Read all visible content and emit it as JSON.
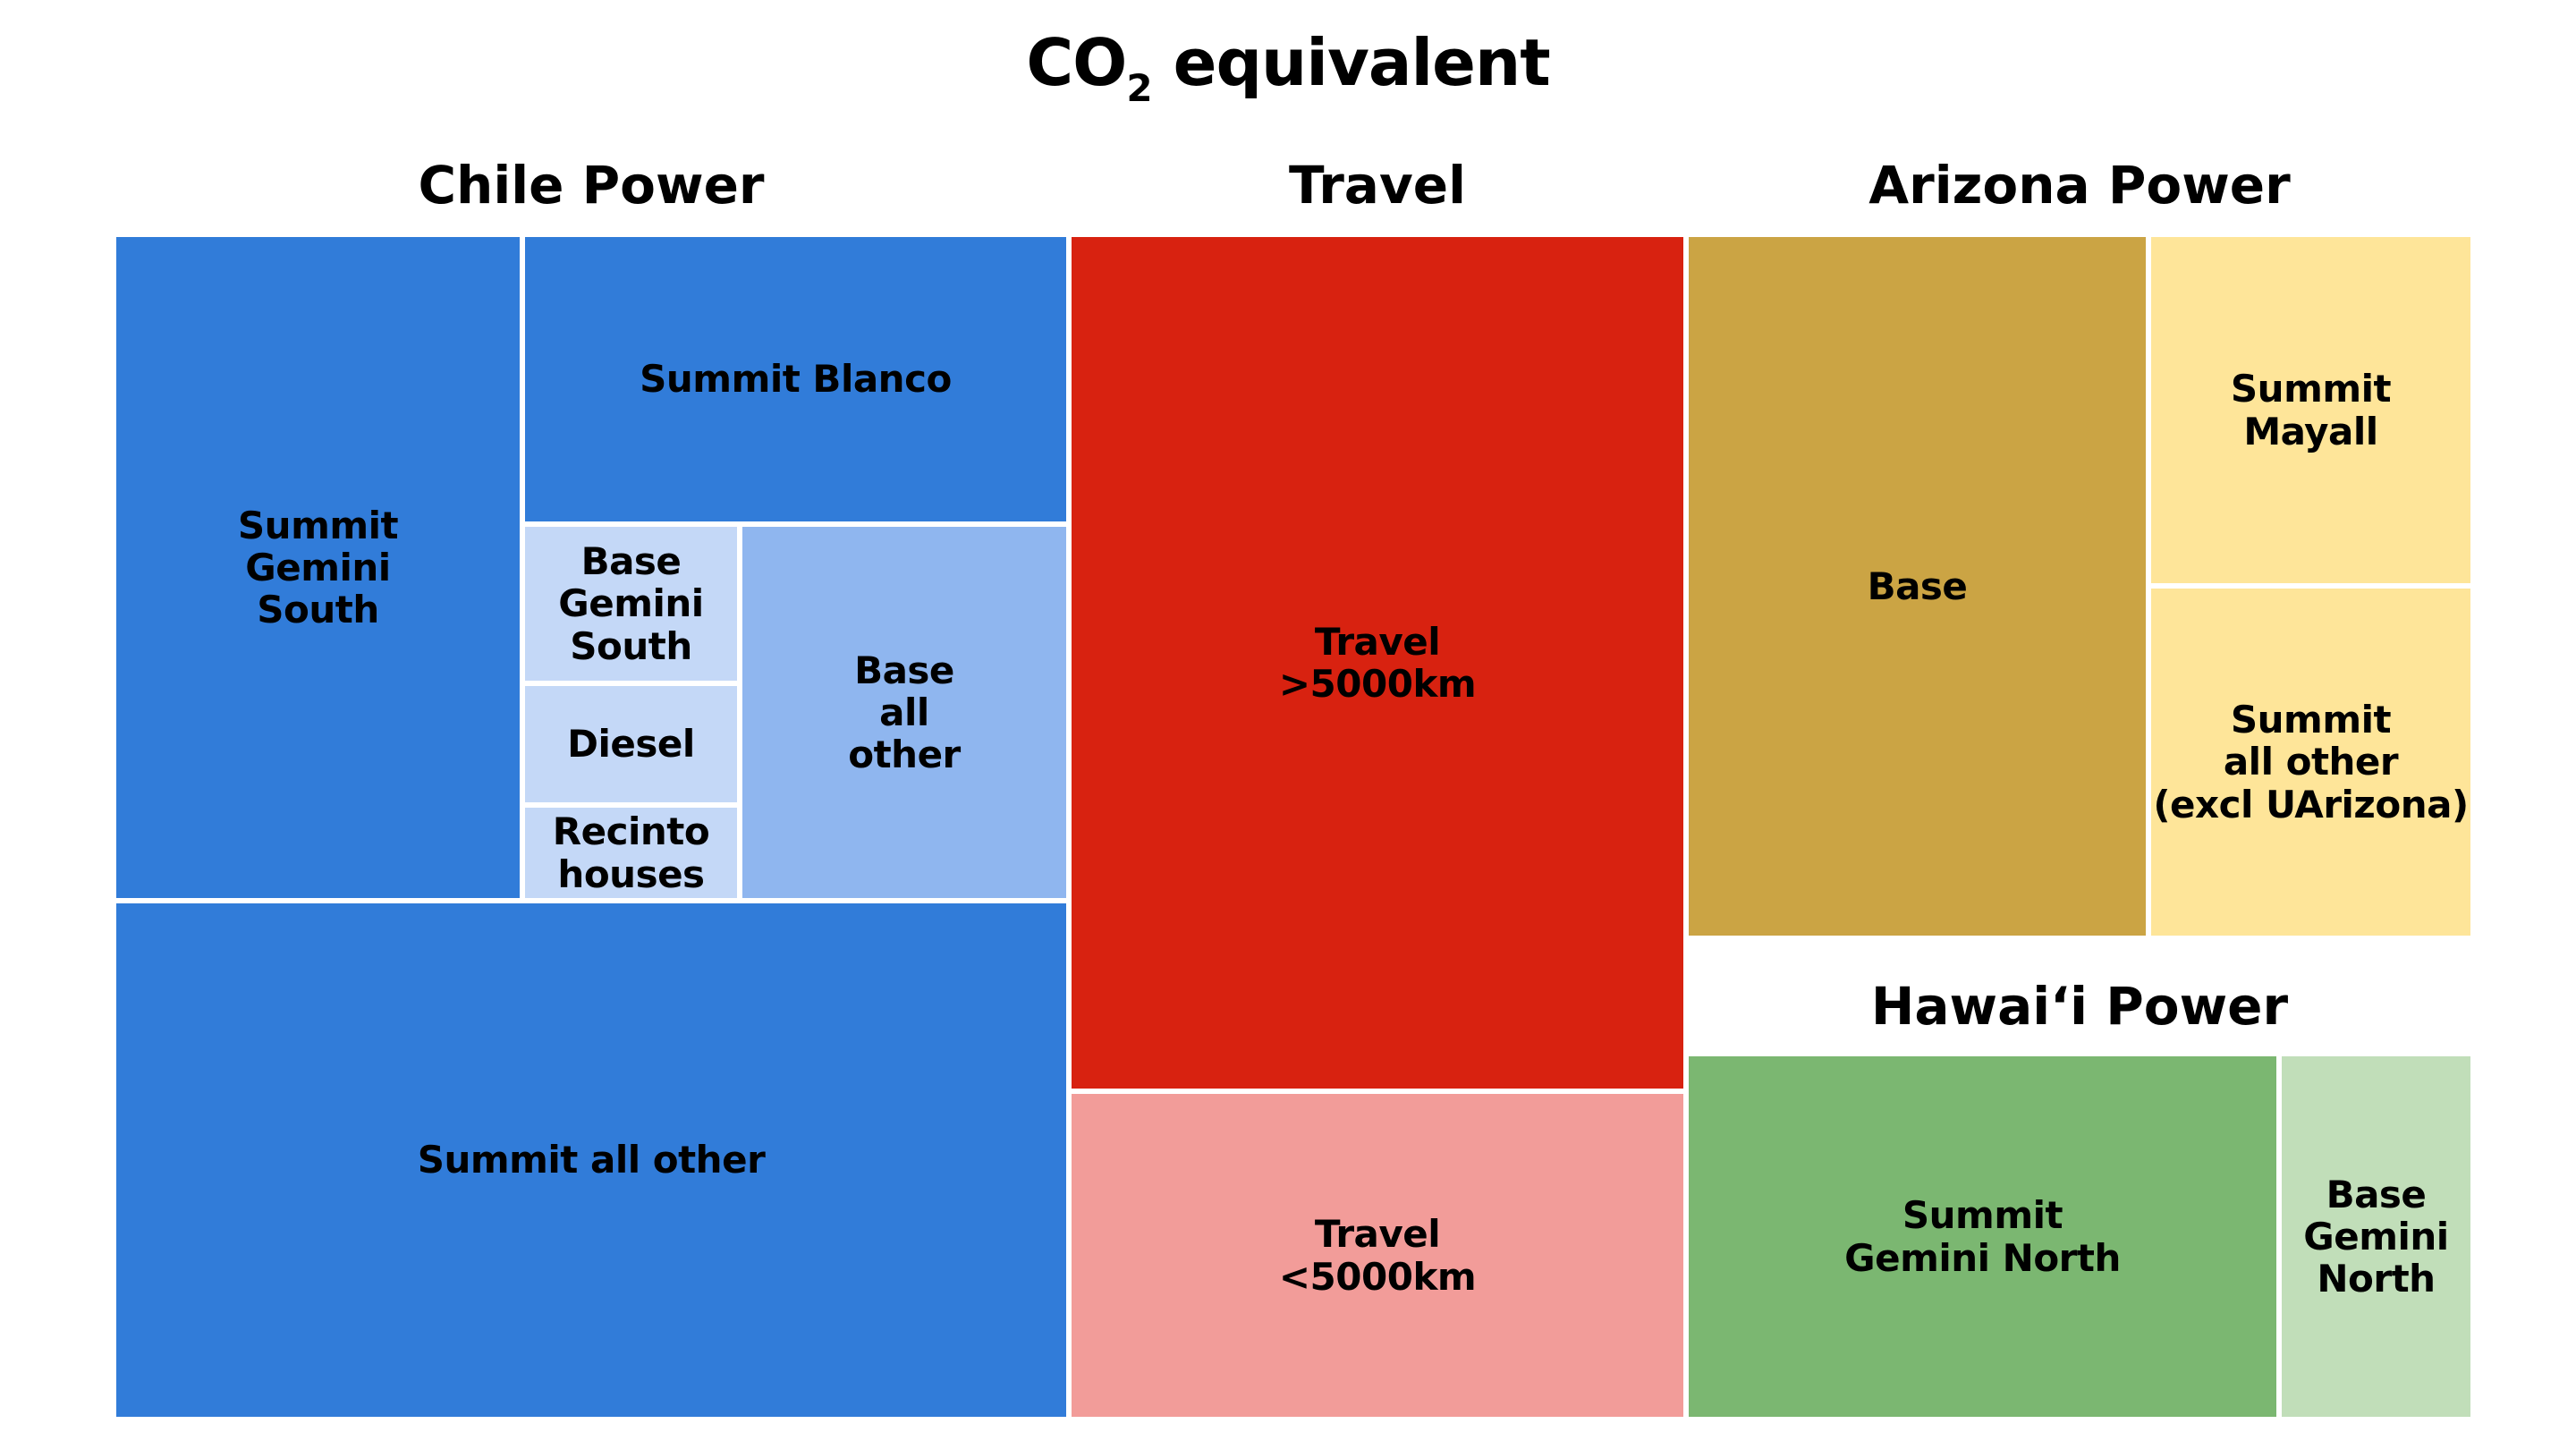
{
  "chart_data": {
    "type": "treemap",
    "title_main": "CO",
    "title_subscript": "2",
    "title_rest": " equivalent",
    "groups": [
      {
        "name": "Chile Power",
        "tiles": [
          {
            "label": "Summit\nGemini\nSouth",
            "color": "#317cd9"
          },
          {
            "label": "Summit Blanco",
            "color": "#317cd9"
          },
          {
            "label": "Base\nGemini\nSouth",
            "color": "#c4d8f7"
          },
          {
            "label": "Diesel",
            "color": "#c4d8f7"
          },
          {
            "label": "Recinto\nhouses",
            "color": "#c4d8f7"
          },
          {
            "label": "Base\nall\nother",
            "color": "#8fb6ef"
          },
          {
            "label": "Summit all other",
            "color": "#317cd9"
          }
        ]
      },
      {
        "name": "Travel",
        "tiles": [
          {
            "label": "Travel\n>5000km",
            "color": "#d82210"
          },
          {
            "label": "Travel\n<5000km",
            "color": "#f29c99"
          }
        ]
      },
      {
        "name": "Arizona Power",
        "tiles": [
          {
            "label": "Base",
            "color": "#cba444"
          },
          {
            "label": "Summit\nMayall",
            "color": "#fee599"
          },
          {
            "label": "Summit\nall other\n(excl UArizona)",
            "color": "#fee599"
          }
        ]
      },
      {
        "name": "Hawai‘i Power",
        "tiles": [
          {
            "label": "Summit\nGemini North",
            "color": "#7bb771"
          },
          {
            "label": "Base\nGemini\nNorth",
            "color": "#c1deb9"
          }
        ]
      }
    ]
  }
}
